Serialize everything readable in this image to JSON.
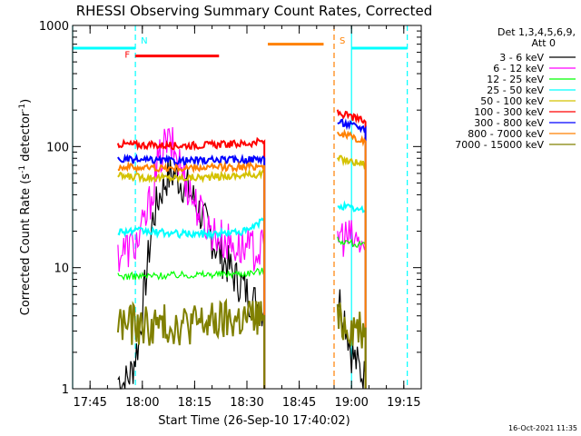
{
  "chart_data": {
    "type": "line",
    "title": "RHESSI Observing Summary Count Rates, Corrected",
    "xlabel": "Start Time (26-Sep-10 17:40:02)",
    "ylabel": "Corrected Count Rate (s^-1 detector^-1)",
    "ylabel_main": "Corrected Count Rate (s",
    "ylabel_sup1": "-1",
    "ylabel_mid": " detector",
    "ylabel_sup2": "-1",
    "ylabel_end": ")",
    "yscale": "log",
    "ylim": [
      1,
      1000
    ],
    "xlim": [
      "17:40",
      "19:20"
    ],
    "y_ticks": [
      {
        "value": 1,
        "label": "1"
      },
      {
        "value": 10,
        "label": "10"
      },
      {
        "value": 100,
        "label": "100"
      },
      {
        "value": 1000,
        "label": "1000"
      }
    ],
    "x_ticks": [
      {
        "value": "17:45",
        "label": "17:45"
      },
      {
        "value": "18:00",
        "label": "18:00"
      },
      {
        "value": "18:15",
        "label": "18:15"
      },
      {
        "value": "18:30",
        "label": "18:30"
      },
      {
        "value": "18:45",
        "label": "18:45"
      },
      {
        "value": "19:00",
        "label": "19:00"
      },
      {
        "value": "19:15",
        "label": "19:15"
      }
    ],
    "legend_title": [
      "Det 1,3,4,5,6,9,",
      "Att 0"
    ],
    "legend_position": "top-right",
    "data_gaps": [
      [
        "18:36",
        "18:55"
      ]
    ],
    "series": [
      {
        "name": "3 - 6 keV",
        "color": "#000000",
        "x": [
          "17:53",
          "17:55",
          "17:57",
          "17:59",
          "18:01",
          "18:03",
          "18:05",
          "18:07",
          "18:09",
          "18:11",
          "18:13",
          "18:15",
          "18:17",
          "18:19",
          "18:21",
          "18:23",
          "18:25",
          "18:27",
          "18:29",
          "18:31",
          "18:33",
          "18:35",
          "18:56",
          "18:58",
          "19:00",
          "19:02",
          "19:04"
        ],
        "y": [
          1.2,
          1.1,
          1.4,
          2.5,
          8,
          25,
          40,
          55,
          60,
          52,
          45,
          35,
          27,
          20,
          15,
          12,
          10,
          8,
          7,
          5.5,
          5,
          4.5,
          6,
          4,
          2,
          1.5,
          1.2
        ]
      },
      {
        "name": "6 - 12 keV",
        "color": "#ff00ff",
        "x": [
          "17:53",
          "17:55",
          "17:57",
          "17:59",
          "18:01",
          "18:03",
          "18:05",
          "18:07",
          "18:09",
          "18:11",
          "18:13",
          "18:15",
          "18:17",
          "18:19",
          "18:21",
          "18:23",
          "18:25",
          "18:27",
          "18:29",
          "18:31",
          "18:33",
          "18:35",
          "18:56",
          "18:58",
          "19:00",
          "19:02",
          "19:04"
        ],
        "y": [
          13,
          14,
          15,
          17,
          25,
          45,
          80,
          110,
          95,
          70,
          48,
          35,
          27,
          22,
          19,
          17,
          16,
          15,
          14.5,
          14,
          14,
          14,
          19,
          18,
          17,
          16,
          15
        ]
      },
      {
        "name": "12 - 25 keV",
        "color": "#00ff00",
        "x": [
          "17:53",
          "18:00",
          "18:10",
          "18:20",
          "18:30",
          "18:35",
          "18:56",
          "19:00",
          "19:04"
        ],
        "y": [
          8.5,
          8.5,
          8.7,
          8.8,
          9.0,
          9.5,
          17,
          16,
          15
        ]
      },
      {
        "name": "25 - 50 keV",
        "color": "#00ffff",
        "x": [
          "17:53",
          "18:00",
          "18:10",
          "18:20",
          "18:30",
          "18:35",
          "18:56",
          "19:00",
          "19:04"
        ],
        "y": [
          20,
          20,
          19,
          19,
          20,
          25,
          33,
          31,
          29
        ]
      },
      {
        "name": "50 - 100 keV",
        "color": "#d4c200",
        "x": [
          "17:53",
          "18:00",
          "18:10",
          "18:20",
          "18:30",
          "18:35",
          "18:56",
          "19:00",
          "19:04"
        ],
        "y": [
          57,
          56,
          55,
          56,
          58,
          60,
          80,
          75,
          72
        ]
      },
      {
        "name": "100 - 300 keV",
        "color": "#ff0000",
        "x": [
          "17:53",
          "18:00",
          "18:10",
          "18:20",
          "18:30",
          "18:35",
          "18:56",
          "19:00",
          "19:04"
        ],
        "y": [
          105,
          103,
          102,
          103,
          106,
          110,
          190,
          175,
          160
        ]
      },
      {
        "name": "300 - 800 keV",
        "color": "#0000ff",
        "x": [
          "17:53",
          "18:00",
          "18:10",
          "18:20",
          "18:30",
          "18:35",
          "18:56",
          "19:00",
          "19:04"
        ],
        "y": [
          78,
          77,
          76,
          77,
          78,
          80,
          160,
          150,
          140
        ]
      },
      {
        "name": "800 - 7000 keV",
        "color": "#ff8000",
        "x": [
          "17:53",
          "18:00",
          "18:10",
          "18:20",
          "18:30",
          "18:35",
          "18:56",
          "19:00",
          "19:04"
        ],
        "y": [
          68,
          67,
          66,
          67,
          68,
          70,
          130,
          120,
          110
        ]
      },
      {
        "name": "7000 - 15000 keV",
        "color": "#808000",
        "x": [
          "17:53",
          "18:00",
          "18:10",
          "18:20",
          "18:30",
          "18:35",
          "18:56",
          "19:00",
          "19:04"
        ],
        "y": [
          3.5,
          3.3,
          3.4,
          3.5,
          3.8,
          4.0,
          3.5,
          3.3,
          3.2
        ]
      }
    ],
    "flags": [
      {
        "label": "N",
        "color": "#00ffff",
        "markers": [
          "17:58",
          "19:16"
        ],
        "bars": [
          {
            "x0": "17:40",
            "x1": "17:58",
            "y": 650
          },
          {
            "x0": "19:00",
            "x1": "19:16",
            "y": 650
          }
        ]
      },
      {
        "label": "S",
        "color": "#ff8000",
        "markers": [
          "18:55"
        ],
        "bars": [
          {
            "x0": "18:36",
            "x1": "18:52",
            "y": 700
          }
        ]
      },
      {
        "label": "F",
        "color": "#ff0000",
        "markers": [],
        "bars": [
          {
            "x0": "17:58",
            "x1": "18:22",
            "y": 560
          }
        ]
      }
    ],
    "vertical_lines": [
      {
        "x": "17:40",
        "color": "#00ffff"
      },
      {
        "x": "19:00",
        "color": "#00ffff"
      }
    ]
  },
  "footer_date": "16-Oct-2021 11:35"
}
